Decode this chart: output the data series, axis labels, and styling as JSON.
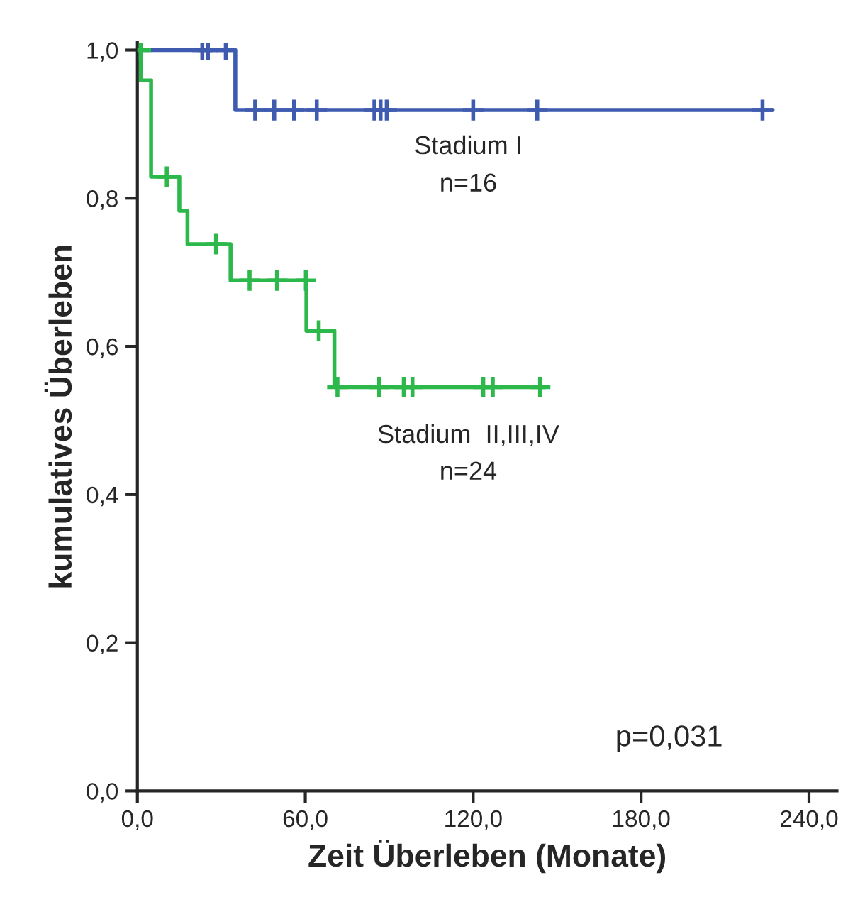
{
  "chart_data": {
    "type": "step",
    "xlabel": "Zeit Überleben (Monate)",
    "ylabel": "kumulatives Überleben",
    "xlim": [
      0,
      250
    ],
    "ylim": [
      0,
      1.01
    ],
    "xticks": [
      {
        "value": 0,
        "label": "0,0"
      },
      {
        "value": 60,
        "label": "60,0"
      },
      {
        "value": 120,
        "label": "120,0"
      },
      {
        "value": 180,
        "label": "180,0"
      },
      {
        "value": 240,
        "label": "240,0"
      }
    ],
    "yticks": [
      {
        "value": 0,
        "label": "0,0"
      },
      {
        "value": 0.2,
        "label": "0,2"
      },
      {
        "value": 0.4,
        "label": "0,4"
      },
      {
        "value": 0.6,
        "label": "0,6"
      },
      {
        "value": 0.8,
        "label": "0,8"
      },
      {
        "value": 1.0,
        "label": "1,0"
      }
    ],
    "grid": false,
    "line_style": "solid",
    "series": [
      {
        "color": "#3f5bb0",
        "x": [
          0,
          35,
          227
        ],
        "values": [
          1.0,
          0.919,
          0.919
        ]
      },
      {
        "color": "#2cb84a",
        "x": [
          0,
          1.2,
          4.9,
          15.0,
          17.9,
          33.3,
          60.4,
          70.4,
          145.6
        ],
        "values": [
          1.0,
          0.959,
          0.829,
          0.783,
          0.738,
          0.689,
          0.621,
          0.545,
          0.545
        ]
      },
      {
        "type": "scatter",
        "marker": "cross",
        "color": "#3f5bb0",
        "x": [
          23.2,
          25.2,
          31.6,
          42.1,
          48.9,
          56.0,
          64.1,
          84.7,
          86.9,
          89.1,
          120,
          142.9,
          223.4
        ],
        "values": [
          1.0,
          1.0,
          1.0,
          0.919,
          0.919,
          0.919,
          0.919,
          0.919,
          0.919,
          0.919,
          0.919,
          0.919,
          0.919
        ]
      },
      {
        "type": "scatter",
        "marker": "cross",
        "color": "#2cb84a",
        "x": [
          1.2,
          10.5,
          28.1,
          40.1,
          49.9,
          60.2,
          64.8,
          71.5,
          86.4,
          95.2,
          98.3,
          123.6,
          127,
          143.9
        ],
        "values": [
          1.0,
          0.829,
          0.738,
          0.689,
          0.689,
          0.689,
          0.621,
          0.545,
          0.545,
          0.545,
          0.545,
          0.545,
          0.545,
          0.545
        ]
      }
    ],
    "annotations": [
      "Stadium I",
      "n=16",
      "Stadium  II,III,IV",
      "n=24",
      "p=0,031"
    ]
  }
}
